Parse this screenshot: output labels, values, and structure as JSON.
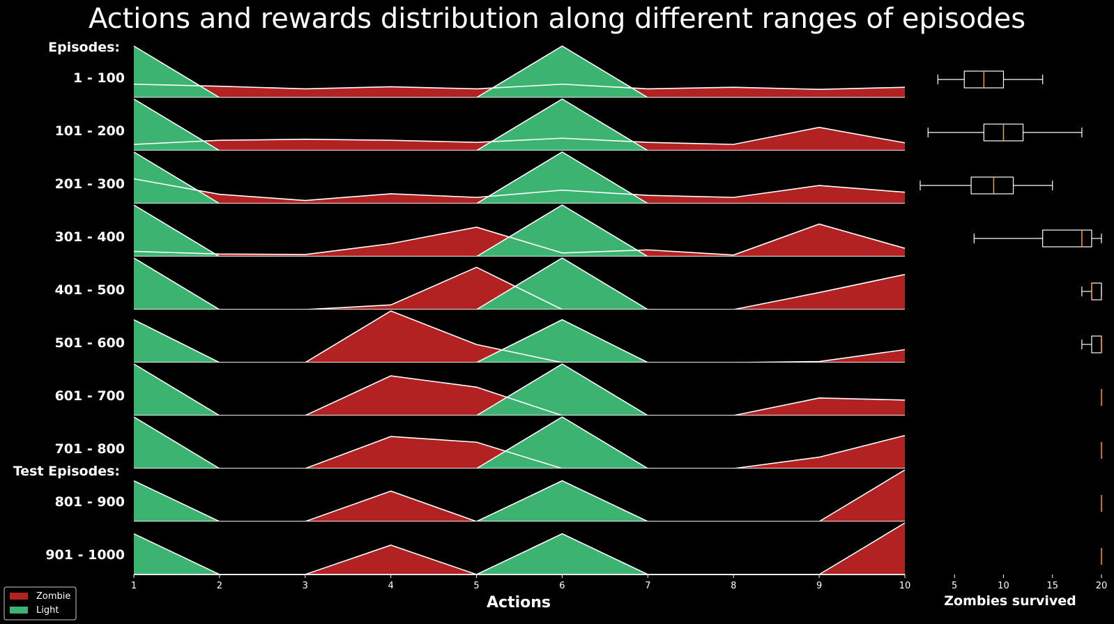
{
  "title": "Actions and rewards distribution along different ranges of episodes",
  "group_headers": [
    "Episodes:",
    "Test Episodes:"
  ],
  "colors": {
    "background": "#000000",
    "zombie": "#b22222",
    "light": "#3cb371",
    "outline": "#ffffff",
    "median": "#ff9f1a"
  },
  "chart_data": [
    {
      "type": "area",
      "subtype": "ridgeline",
      "title": "Actions and rewards distribution along different ranges of episodes",
      "xlabel": "Actions",
      "ylabel": "",
      "x": [
        1,
        2,
        3,
        4,
        5,
        6,
        7,
        8,
        9,
        10
      ],
      "xlim": [
        1,
        10
      ],
      "row_labels": [
        "1 - 100",
        "101 - 200",
        "201 - 300",
        "301 - 400",
        "401 - 500",
        "501 - 600",
        "601 - 700",
        "701 - 800",
        "801 - 900",
        "901 - 1000"
      ],
      "series": [
        {
          "name": "Zombie",
          "color": "#b22222",
          "rows": [
            [
              0.26,
              0.22,
              0.17,
              0.21,
              0.17,
              0.26,
              0.17,
              0.2,
              0.16,
              0.2
            ],
            [
              0.12,
              0.2,
              0.22,
              0.2,
              0.16,
              0.24,
              0.16,
              0.12,
              0.45,
              0.15
            ],
            [
              0.48,
              0.18,
              0.06,
              0.19,
              0.12,
              0.26,
              0.16,
              0.12,
              0.35,
              0.22
            ],
            [
              0.1,
              0.05,
              0.04,
              0.25,
              0.57,
              0.07,
              0.13,
              0.03,
              0.63,
              0.16
            ],
            [
              0.0,
              0.0,
              0.0,
              0.09,
              0.82,
              0.0,
              0.0,
              0.0,
              0.33,
              0.68
            ],
            [
              0.0,
              0.0,
              0.0,
              1.0,
              0.35,
              0.0,
              0.0,
              0.0,
              0.02,
              0.25
            ],
            [
              0.0,
              0.0,
              0.0,
              0.77,
              0.55,
              0.0,
              0.0,
              0.0,
              0.34,
              0.3
            ],
            [
              0.0,
              0.0,
              0.0,
              0.62,
              0.51,
              0.0,
              0.0,
              0.0,
              0.22,
              0.64
            ],
            [
              0.0,
              0.0,
              0.0,
              0.59,
              0.0,
              0.0,
              0.0,
              0.0,
              0.0,
              1.0
            ],
            [
              0.0,
              0.0,
              0.0,
              0.57,
              0.0,
              0.0,
              0.0,
              0.0,
              0.0,
              1.0
            ]
          ]
        },
        {
          "name": "Light",
          "color": "#3cb371",
          "rows": [
            [
              1.0,
              0.0,
              0.0,
              0.0,
              0.0,
              1.0,
              0.0,
              0.0,
              0.0,
              0.0
            ],
            [
              1.0,
              0.0,
              0.0,
              0.0,
              0.0,
              1.0,
              0.0,
              0.0,
              0.0,
              0.0
            ],
            [
              1.0,
              0.0,
              0.0,
              0.0,
              0.0,
              1.0,
              0.0,
              0.0,
              0.0,
              0.0
            ],
            [
              1.0,
              0.0,
              0.0,
              0.0,
              0.0,
              1.0,
              0.0,
              0.0,
              0.0,
              0.0
            ],
            [
              1.0,
              0.0,
              0.0,
              0.0,
              0.0,
              1.0,
              0.0,
              0.0,
              0.0,
              0.0
            ],
            [
              0.83,
              0.0,
              0.0,
              0.0,
              0.0,
              0.83,
              0.0,
              0.0,
              0.0,
              0.0
            ],
            [
              1.0,
              0.0,
              0.0,
              0.0,
              0.0,
              1.0,
              0.0,
              0.0,
              0.0,
              0.0
            ],
            [
              1.0,
              0.0,
              0.0,
              0.0,
              0.0,
              1.0,
              0.0,
              0.0,
              0.0,
              0.0
            ],
            [
              0.79,
              0.0,
              0.0,
              0.0,
              0.0,
              0.79,
              0.0,
              0.0,
              0.0,
              0.0
            ],
            [
              0.79,
              0.0,
              0.0,
              0.0,
              0.0,
              0.79,
              0.0,
              0.0,
              0.0,
              0.0
            ]
          ]
        }
      ],
      "legend": {
        "placement": "bottom-left",
        "entries": [
          "Zombie",
          "Light"
        ]
      },
      "grid": false
    },
    {
      "type": "box",
      "xlabel": "Zombies survived",
      "ylabel": "",
      "xlim": [
        1.5,
        20
      ],
      "xticks": [
        5,
        10,
        15,
        20
      ],
      "rows": [
        {
          "label": "1 - 100",
          "whislo": 3.3,
          "q1": 6.0,
          "med": 8.0,
          "q3": 10.0,
          "whishi": 14.0
        },
        {
          "label": "101 - 200",
          "whislo": 2.3,
          "q1": 8.0,
          "med": 10.0,
          "q3": 12.0,
          "whishi": 18.0
        },
        {
          "label": "201 - 300",
          "whislo": 1.5,
          "q1": 6.7,
          "med": 9.0,
          "q3": 11.0,
          "whishi": 15.0
        },
        {
          "label": "301 - 400",
          "whislo": 7.0,
          "q1": 14.0,
          "med": 18.0,
          "q3": 19.0,
          "whishi": 20.0
        },
        {
          "label": "401 - 500",
          "whislo": 18.0,
          "q1": 19.0,
          "med": 19.0,
          "q3": 20.0,
          "whishi": 20.0
        },
        {
          "label": "501 - 600",
          "whislo": 18.0,
          "q1": 19.0,
          "med": 20.0,
          "q3": 20.0,
          "whishi": 20.0
        },
        {
          "label": "601 - 700",
          "whislo": 20.0,
          "q1": 20.0,
          "med": 20.0,
          "q3": 20.0,
          "whishi": 20.0
        },
        {
          "label": "701 - 800",
          "whislo": 20.0,
          "q1": 20.0,
          "med": 20.0,
          "q3": 20.0,
          "whishi": 20.0
        },
        {
          "label": "801 - 900",
          "whislo": 20.0,
          "q1": 20.0,
          "med": 20.0,
          "q3": 20.0,
          "whishi": 20.0
        },
        {
          "label": "901 - 1000",
          "whislo": 20.0,
          "q1": 20.0,
          "med": 20.0,
          "q3": 20.0,
          "whishi": 20.0
        }
      ]
    }
  ]
}
